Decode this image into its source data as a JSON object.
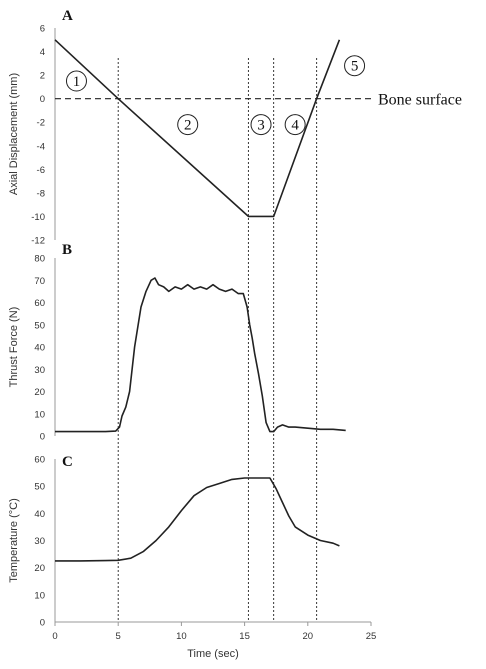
{
  "chart_data": [
    {
      "panel": "A",
      "type": "line",
      "ylabel": "Axial Displacement (mm)",
      "ylim": [
        -12,
        6
      ],
      "yticks": [
        6,
        4,
        2,
        0,
        -2,
        -4,
        -6,
        -8,
        -10,
        -12
      ],
      "xlim": [
        0,
        25
      ],
      "series": [
        {
          "x": [
            0,
            5,
            15.3,
            17.3,
            20.7,
            22.5
          ],
          "y": [
            5,
            0,
            -10,
            -10,
            0,
            5
          ]
        }
      ],
      "reference_line": {
        "y": 0,
        "label": "Bone surface"
      },
      "phases": [
        {
          "label": "1",
          "x": 1.7,
          "y": 1.5
        },
        {
          "label": "2",
          "x": 10.5,
          "y": -2.2
        },
        {
          "label": "3",
          "x": 16.3,
          "y": -2.2
        },
        {
          "label": "4",
          "x": 19.0,
          "y": -2.2
        },
        {
          "label": "5",
          "x": 23.7,
          "y": 2.8
        }
      ]
    },
    {
      "panel": "B",
      "type": "line",
      "ylabel": "Thrust Force (N)",
      "ylim": [
        0,
        80
      ],
      "yticks": [
        80,
        70,
        60,
        50,
        40,
        30,
        20,
        10,
        0
      ],
      "xlim": [
        0,
        25
      ],
      "series": [
        {
          "x": [
            0,
            2,
            4,
            4.8,
            5.1,
            5.3,
            5.6,
            5.9,
            6.3,
            6.8,
            7.2,
            7.6,
            7.9,
            8.2,
            8.6,
            9,
            9.5,
            10,
            10.5,
            11,
            11.5,
            12,
            12.5,
            13,
            13.5,
            14,
            14.5,
            14.9,
            15.2,
            15.4,
            15.6,
            15.8,
            16.1,
            16.4,
            16.7,
            17,
            17.3,
            17.6,
            18,
            18.5,
            19,
            20,
            21,
            22,
            23
          ],
          "y": [
            2,
            2,
            2,
            2.2,
            4,
            9,
            13,
            20,
            40,
            58,
            65,
            70,
            71,
            68,
            67,
            65,
            67,
            66,
            68,
            66,
            67,
            66,
            68,
            66,
            65,
            66,
            64,
            64,
            58,
            50,
            44,
            37,
            28,
            18,
            6,
            2,
            2,
            4,
            5,
            4,
            4,
            3.5,
            3,
            3,
            2.5
          ]
        }
      ]
    },
    {
      "panel": "C",
      "type": "line",
      "ylabel": "Temperature (°C)",
      "xlabel": "Time (sec)",
      "ylim": [
        0,
        60
      ],
      "yticks": [
        60,
        50,
        40,
        30,
        20,
        10,
        0
      ],
      "xlim": [
        0,
        25
      ],
      "xticks": [
        0,
        5,
        10,
        15,
        20,
        25
      ],
      "series": [
        {
          "x": [
            0,
            2,
            4,
            5,
            6,
            7,
            8,
            9,
            10,
            11,
            12,
            13,
            14,
            15,
            16,
            17,
            17.5,
            18,
            18.5,
            19,
            20,
            21,
            22,
            22.5
          ],
          "y": [
            22.5,
            22.5,
            22.6,
            22.7,
            23.5,
            26,
            30,
            35,
            41,
            46.5,
            49.5,
            51,
            52.5,
            53,
            53,
            53,
            49,
            44,
            39,
            35,
            32,
            30,
            29,
            28
          ]
        }
      ]
    }
  ],
  "vertical_markers_x": [
    5,
    15.3,
    17.3,
    20.7
  ]
}
